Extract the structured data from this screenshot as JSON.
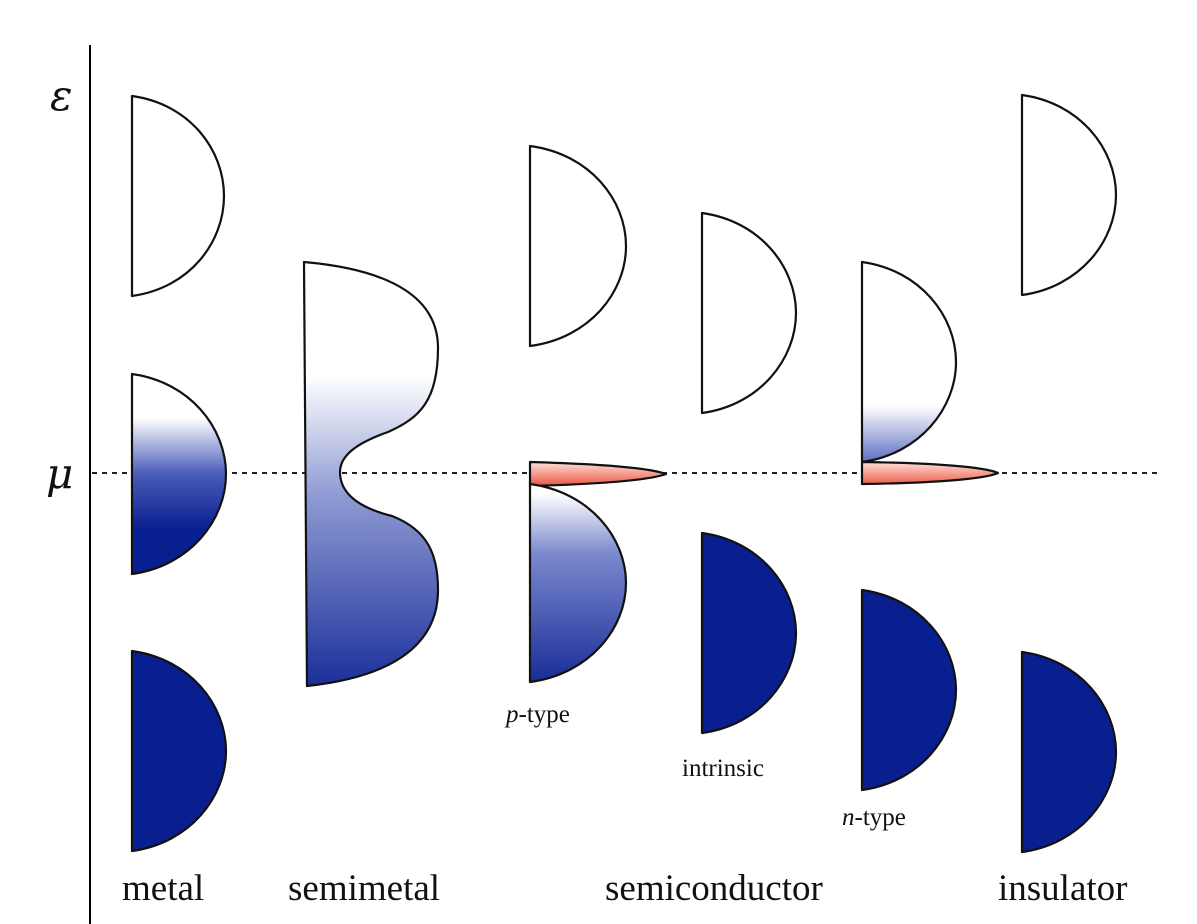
{
  "axis": {
    "energy_symbol": "ε",
    "chemical_potential_symbol": "μ"
  },
  "categories": {
    "metal": "metal",
    "semimetal": "semimetal",
    "semiconductor": "semiconductor",
    "insulator": "insulator"
  },
  "semiconductor_types": {
    "p_type_prefix": "p",
    "p_type_suffix": "-type",
    "intrinsic": "intrinsic",
    "n_type_prefix": "n",
    "n_type_suffix": "-type"
  },
  "colors": {
    "filled_band": "#0a1f8f",
    "empty_band": "#ffffff",
    "dopant_level": "#f07060",
    "outline": "#111111"
  }
}
